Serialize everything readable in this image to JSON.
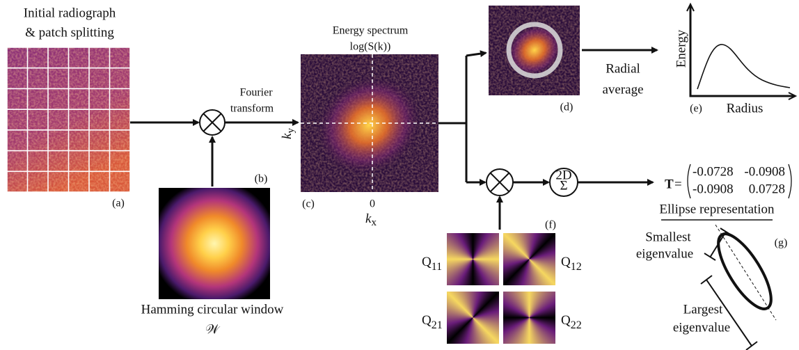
{
  "radiograph": {
    "title_line1": "Initial radiograph",
    "title_line2": "& patch splitting",
    "label": "(a)"
  },
  "window": {
    "caption": "Hamming circular window",
    "symbol": "𝒲",
    "label": "(b)"
  },
  "fourier": {
    "line1": "Fourier",
    "line2": "transform"
  },
  "spectrum": {
    "title_line1": "Energy spectrum",
    "title_line2": "log(S(k))",
    "y_axis": {
      "base": "k",
      "sub": "y"
    },
    "x_axis": {
      "base": "k",
      "sub": "x"
    },
    "origin": "0",
    "label": "(c)"
  },
  "radial_image": {
    "label": "(d)"
  },
  "radial_average": {
    "line1": "Radial",
    "line2": "average"
  },
  "energy_plot": {
    "y_label": "Energy",
    "x_label": "Radius",
    "label": "(e)"
  },
  "filters": {
    "label": "(f)",
    "items": [
      {
        "base": "Q",
        "sub": "11"
      },
      {
        "base": "Q",
        "sub": "12"
      },
      {
        "base": "Q",
        "sub": "21"
      },
      {
        "base": "Q",
        "sub": "22"
      }
    ]
  },
  "sum": {
    "top": "2D",
    "symbol": "Σ"
  },
  "tensor": {
    "symbol": "T",
    "equals": "=",
    "rows": [
      [
        "-0.0728",
        "-0.0908"
      ],
      [
        "-0.0908",
        "0.0728"
      ]
    ]
  },
  "ellipse": {
    "title": "Ellipse representation",
    "label": "(g)",
    "smallest_line1": "Smallest",
    "smallest_line2": "eigenvalue",
    "largest_line1": "Largest",
    "largest_line2": "eigenvalue"
  }
}
